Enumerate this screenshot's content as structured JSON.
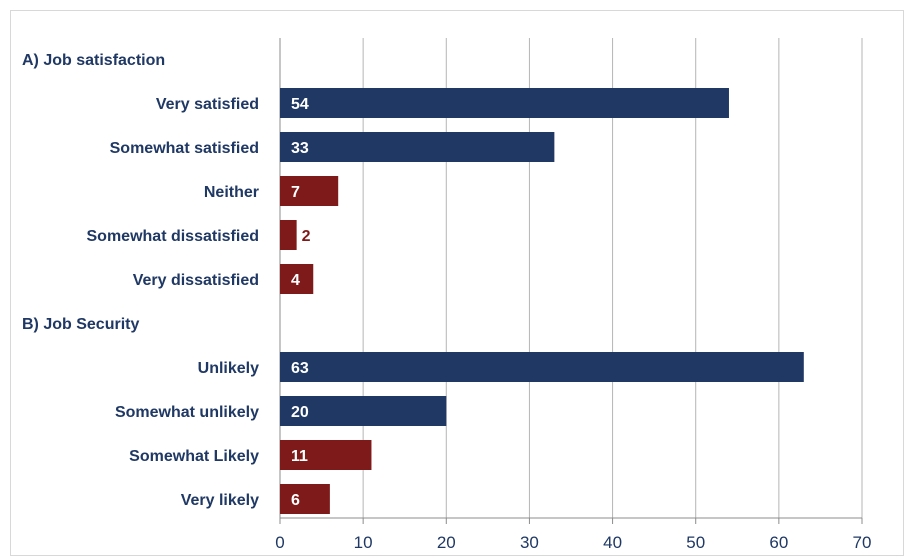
{
  "chart_data": {
    "type": "bar",
    "orientation": "horizontal",
    "xlim": [
      0,
      70
    ],
    "x_ticks": [
      0,
      10,
      20,
      30,
      40,
      50,
      60,
      70
    ],
    "grid": "vertical",
    "colors": {
      "positive": "#1f3864",
      "negative": "#7f1a1a"
    },
    "sections": [
      {
        "title": "A) Job satisfaction",
        "items": [
          {
            "label": "Very satisfied",
            "value": 54,
            "color": "positive"
          },
          {
            "label": "Somewhat satisfied",
            "value": 33,
            "color": "positive"
          },
          {
            "label": "Neither",
            "value": 7,
            "color": "negative"
          },
          {
            "label": "Somewhat dissatisfied",
            "value": 2,
            "color": "negative"
          },
          {
            "label": "Very dissatisfied",
            "value": 4,
            "color": "negative"
          }
        ]
      },
      {
        "title": "B) Job Security",
        "items": [
          {
            "label": "Unlikely",
            "value": 63,
            "color": "positive"
          },
          {
            "label": "Somewhat unlikely",
            "value": 20,
            "color": "positive"
          },
          {
            "label": "Somewhat Likely",
            "value": 11,
            "color": "negative"
          },
          {
            "label": "Very likely",
            "value": 6,
            "color": "negative"
          }
        ]
      }
    ]
  }
}
